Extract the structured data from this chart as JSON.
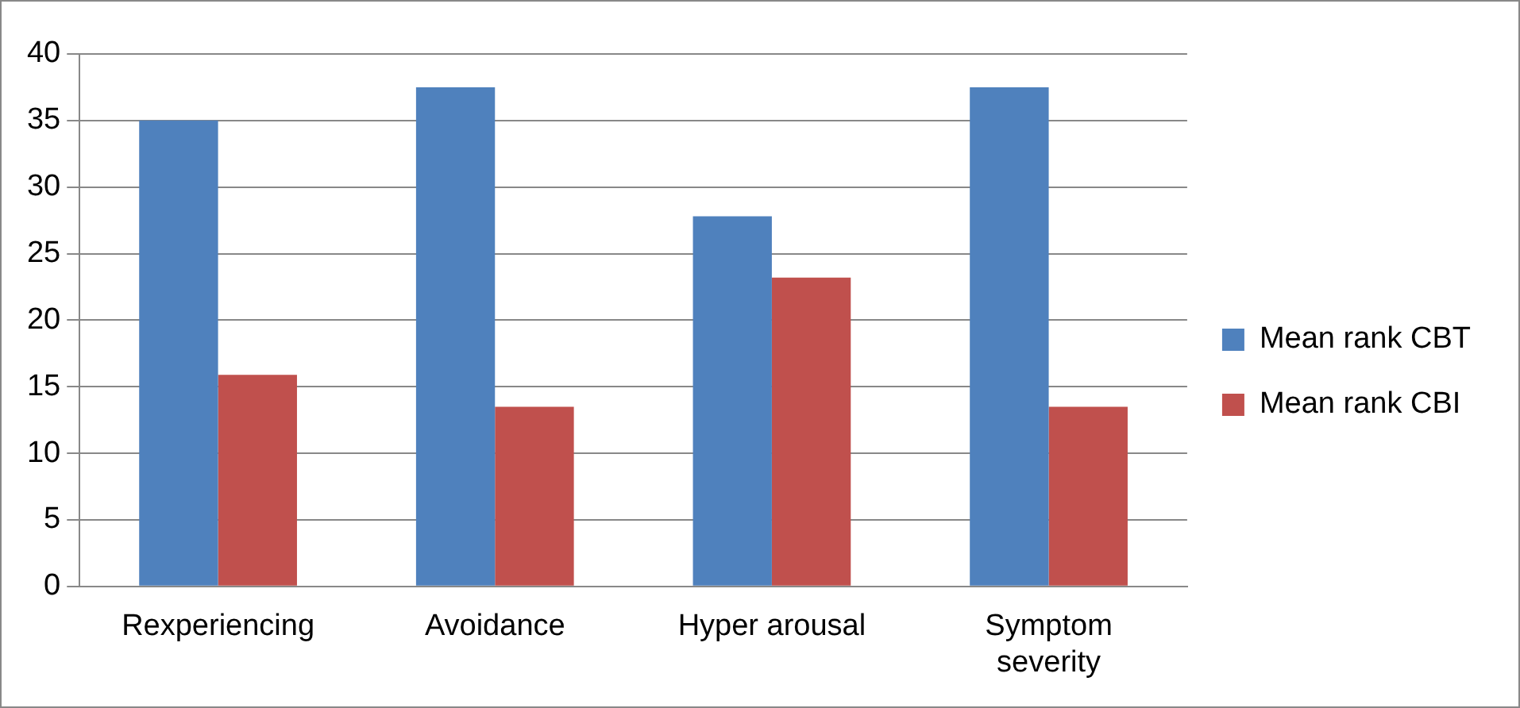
{
  "chart_data": {
    "type": "bar",
    "categories": [
      "Rexperiencing",
      "Avoidance",
      "Hyper arousal",
      "Symptom severity"
    ],
    "series": [
      {
        "name": "Mean rank CBT",
        "color": "#4f81bd",
        "values": [
          35,
          37.5,
          27.8,
          37.5
        ]
      },
      {
        "name": "Mean rank CBI",
        "color": "#c0504d",
        "values": [
          15.9,
          13.5,
          23.2,
          13.5
        ]
      }
    ],
    "ylim": [
      0,
      40
    ],
    "yticks": [
      0,
      5,
      10,
      15,
      20,
      25,
      30,
      35,
      40
    ],
    "grid": "y",
    "legend": "right"
  }
}
